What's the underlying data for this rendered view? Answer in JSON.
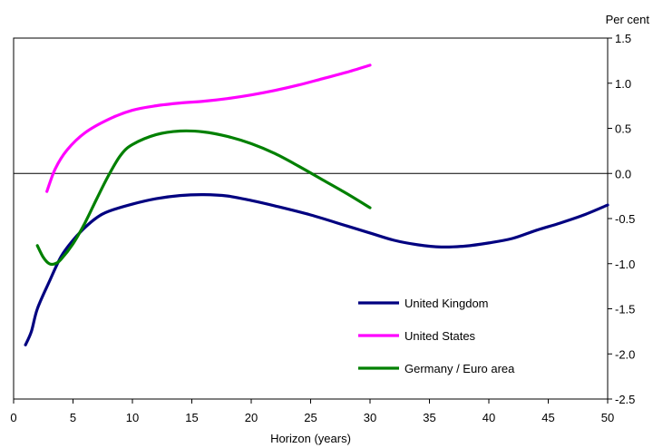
{
  "chart_data": {
    "type": "line",
    "title": "",
    "xlabel": "Horizon (years)",
    "ylabel": "Per cent",
    "xlim": [
      0,
      50
    ],
    "ylim": [
      -2.5,
      1.5
    ],
    "x_ticks": [
      0,
      5,
      10,
      15,
      20,
      25,
      30,
      35,
      40,
      45,
      50
    ],
    "y_ticks": [
      1.5,
      1.0,
      0.5,
      0.0,
      -0.5,
      -1.0,
      -1.5,
      -2.0,
      -2.5
    ],
    "x_tick_labels": [
      "0",
      "5",
      "10",
      "15",
      "20",
      "25",
      "30",
      "35",
      "40",
      "45",
      "50"
    ],
    "y_tick_labels": [
      "1.5",
      "1.0",
      "0.5",
      "0.0",
      "-0.5",
      "-1.0",
      "-1.5",
      "-2.0",
      "-2.5"
    ],
    "y_axis_side": "right",
    "zero_line": true,
    "grid": false,
    "legend_position": "bottom-right",
    "series": [
      {
        "name": "United Kingdom",
        "color": "#000080",
        "points": [
          [
            1,
            -1.9
          ],
          [
            1.5,
            -1.75
          ],
          [
            2,
            -1.5
          ],
          [
            3,
            -1.2
          ],
          [
            4,
            -0.92
          ],
          [
            5,
            -0.74
          ],
          [
            6,
            -0.6
          ],
          [
            7,
            -0.49
          ],
          [
            8,
            -0.42
          ],
          [
            10,
            -0.34
          ],
          [
            12,
            -0.28
          ],
          [
            14,
            -0.245
          ],
          [
            16,
            -0.235
          ],
          [
            18,
            -0.25
          ],
          [
            20,
            -0.3
          ],
          [
            22,
            -0.36
          ],
          [
            25,
            -0.46
          ],
          [
            28,
            -0.58
          ],
          [
            30,
            -0.66
          ],
          [
            32,
            -0.74
          ],
          [
            34,
            -0.79
          ],
          [
            36,
            -0.815
          ],
          [
            38,
            -0.805
          ],
          [
            40,
            -0.77
          ],
          [
            42,
            -0.72
          ],
          [
            44,
            -0.63
          ],
          [
            46,
            -0.55
          ],
          [
            48,
            -0.46
          ],
          [
            50,
            -0.35
          ]
        ]
      },
      {
        "name": "United States",
        "color": "#ff00ff",
        "points": [
          [
            2.8,
            -0.2
          ],
          [
            3.5,
            0.05
          ],
          [
            4.5,
            0.26
          ],
          [
            6,
            0.45
          ],
          [
            8,
            0.6
          ],
          [
            10,
            0.7
          ],
          [
            12,
            0.75
          ],
          [
            14,
            0.78
          ],
          [
            16,
            0.8
          ],
          [
            18,
            0.83
          ],
          [
            20,
            0.87
          ],
          [
            22,
            0.92
          ],
          [
            24,
            0.98
          ],
          [
            26,
            1.05
          ],
          [
            28,
            1.12
          ],
          [
            30,
            1.2
          ]
        ]
      },
      {
        "name": "Germany / Euro area",
        "color": "#008000",
        "points": [
          [
            2,
            -0.8
          ],
          [
            2.5,
            -0.93
          ],
          [
            3,
            -1.0
          ],
          [
            3.5,
            -1.0
          ],
          [
            4,
            -0.95
          ],
          [
            5,
            -0.78
          ],
          [
            6,
            -0.55
          ],
          [
            7,
            -0.28
          ],
          [
            8,
            -0.02
          ],
          [
            9,
            0.2
          ],
          [
            10,
            0.32
          ],
          [
            12,
            0.43
          ],
          [
            14,
            0.47
          ],
          [
            16,
            0.46
          ],
          [
            18,
            0.41
          ],
          [
            20,
            0.33
          ],
          [
            22,
            0.22
          ],
          [
            24,
            0.08
          ],
          [
            26,
            -0.07
          ],
          [
            28,
            -0.22
          ],
          [
            30,
            -0.38
          ]
        ]
      }
    ]
  }
}
